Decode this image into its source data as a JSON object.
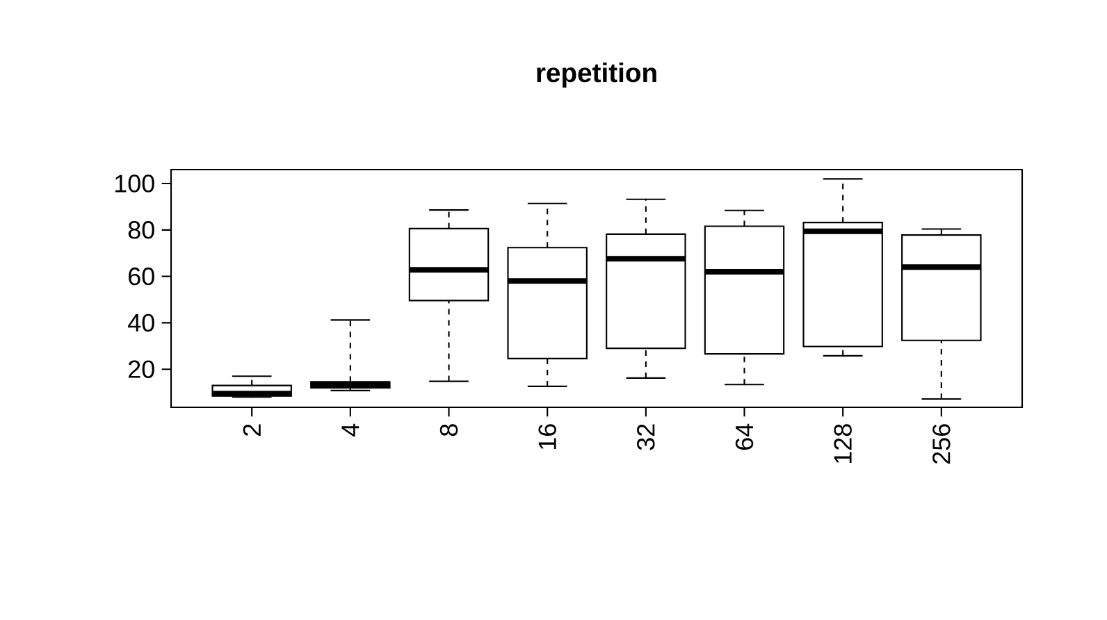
{
  "chart_data": {
    "type": "box",
    "title": "repetition",
    "categories": [
      "2",
      "4",
      "8",
      "16",
      "32",
      "64",
      "128",
      "256"
    ],
    "boxes": [
      {
        "low": 8,
        "q1": 8.5,
        "median": 9.5,
        "q3": 13,
        "high": 17
      },
      {
        "low": 10.8,
        "q1": 12,
        "median": 13.2,
        "q3": 14.6,
        "high": 41.2
      },
      {
        "low": 14.8,
        "q1": 49.6,
        "median": 62.8,
        "q3": 80.6,
        "high": 88.6
      },
      {
        "low": 12.6,
        "q1": 24.6,
        "median": 58,
        "q3": 72.4,
        "high": 91.4
      },
      {
        "low": 16.2,
        "q1": 29,
        "median": 67.6,
        "q3": 78.2,
        "high": 93.2
      },
      {
        "low": 13.4,
        "q1": 26.6,
        "median": 62,
        "q3": 81.6,
        "high": 88.4
      },
      {
        "low": 25.8,
        "q1": 29.8,
        "median": 79.4,
        "q3": 83.2,
        "high": 102
      },
      {
        "low": 7.2,
        "q1": 32.4,
        "median": 64,
        "q3": 77.8,
        "high": 80.4
      }
    ],
    "ylim": [
      3.6,
      106
    ],
    "yticks": [
      20,
      40,
      60,
      80,
      100
    ]
  }
}
